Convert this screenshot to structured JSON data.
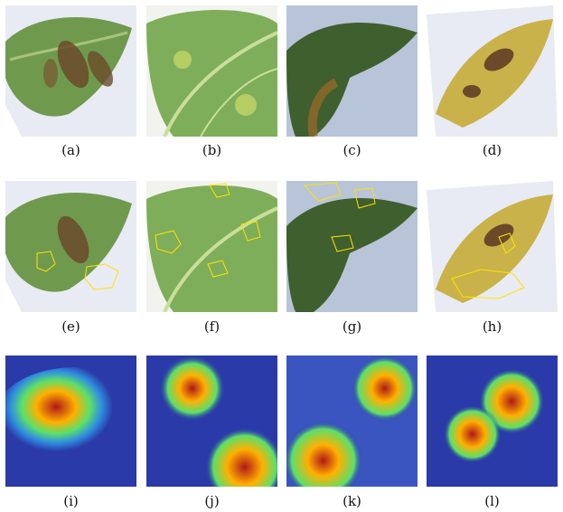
{
  "grid": {
    "rows": [
      {
        "kind": "original",
        "captions": [
          "(a)",
          "(b)",
          "(c)",
          "(d)"
        ]
      },
      {
        "kind": "segmented",
        "captions": [
          "(e)",
          "(f)",
          "(g)",
          "(h)"
        ]
      },
      {
        "kind": "heatmap",
        "captions": [
          "(i)",
          "(j)",
          "(k)",
          "(l)"
        ]
      }
    ]
  },
  "colors": {
    "leaf_green": "#6f9a4e",
    "leaf_dark": "#3f5f2e",
    "yellow_leaf": "#c9b24a",
    "lesion_brown": "#6b4a2a",
    "outline_yellow": "#ffe200",
    "heat_blue": "#2a3aa8",
    "heat_red": "#b01818"
  }
}
